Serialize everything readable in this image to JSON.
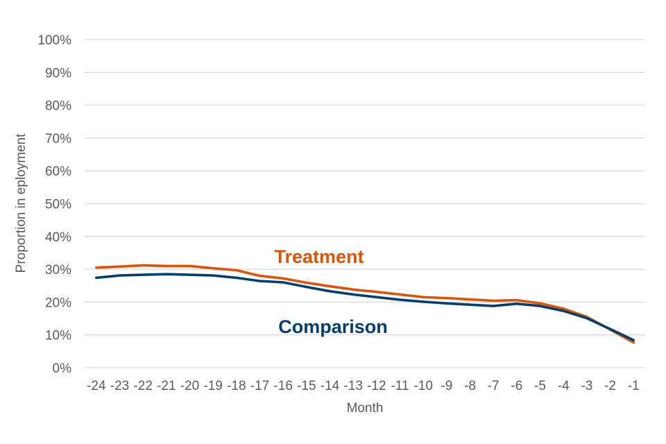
{
  "chart_data": {
    "type": "line",
    "title": "",
    "xlabel": "Month",
    "ylabel": "Proportion in eployment",
    "categories": [
      "-24",
      "-23",
      "-22",
      "-21",
      "-20",
      "-19",
      "-18",
      "-17",
      "-16",
      "-15",
      "-14",
      "-13",
      "-12",
      "-11",
      "-10",
      "-9",
      "-8",
      "-7",
      "-6",
      "-5",
      "-4",
      "-3",
      "-2",
      "-1"
    ],
    "y_ticks": [
      "0%",
      "10%",
      "20%",
      "30%",
      "40%",
      "50%",
      "60%",
      "70%",
      "80%",
      "90%",
      "100%"
    ],
    "ylim": [
      0,
      100
    ],
    "grid": true,
    "legend": "inline labels",
    "series": [
      {
        "name": "Treatment",
        "color": "#e15205",
        "values": [
          30.5,
          30.8,
          31.2,
          31.0,
          31.0,
          30.3,
          29.7,
          28.0,
          27.2,
          25.9,
          24.8,
          23.8,
          23.1,
          22.3,
          21.5,
          21.2,
          20.8,
          20.4,
          20.6,
          19.6,
          18.0,
          15.5,
          11.6,
          7.7
        ]
      },
      {
        "name": "Comparison",
        "color": "#003f72",
        "values": [
          27.4,
          28.1,
          28.3,
          28.5,
          28.3,
          28.1,
          27.4,
          26.4,
          26.0,
          24.6,
          23.3,
          22.3,
          21.5,
          20.7,
          20.1,
          19.6,
          19.2,
          18.8,
          19.5,
          18.8,
          17.3,
          15.1,
          11.8,
          8.4
        ]
      }
    ]
  }
}
